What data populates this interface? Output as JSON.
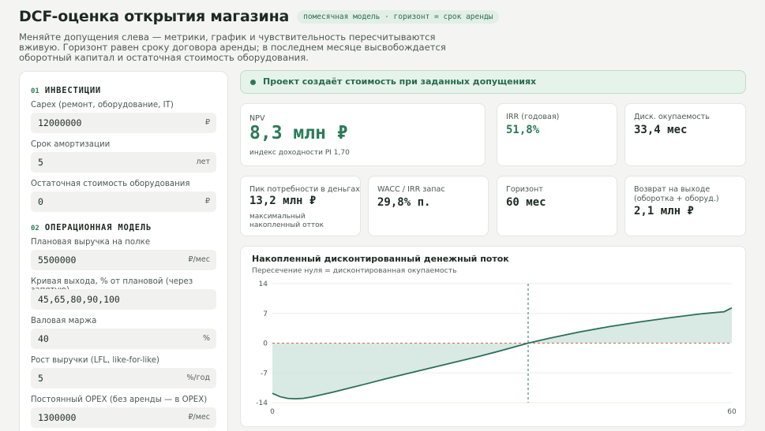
{
  "header": {
    "title": "DCF-оценка открытия магазина",
    "badge": "помесячная модель · горизонт = срок аренды",
    "subtitle": "Меняйте допущения слева — метрики, график и чувствительность пересчитываются вживую. Горизонт равен сроку договора аренды; в последнем месяце высвобождается оборотный капитал и остаточная стоимость оборудования."
  },
  "sections": {
    "investments": {
      "num": "01",
      "title": "ИНВЕСТИЦИИ"
    },
    "operations": {
      "num": "02",
      "title": "ОПЕРАЦИОННАЯ МОДЕЛЬ"
    }
  },
  "fields": [
    {
      "label": "Capex (ремонт, оборудование, IT)",
      "value": "12000000",
      "unit": "₽"
    },
    {
      "label": "Срок амортизации",
      "value": "5",
      "unit": "лет"
    },
    {
      "label": "Остаточная стоимость оборудования",
      "value": "0",
      "unit": "₽"
    },
    {
      "label": "Плановая выручка на полке",
      "value": "5500000",
      "unit": "₽/мес"
    },
    {
      "label": "Кривая выхода, % от плановой (через запятую)",
      "value": "45,65,80,90,100",
      "unit": ""
    },
    {
      "label": "Валовая маржа",
      "value": "40",
      "unit": "%"
    },
    {
      "label": "Рост выручки (LFL, like-for-like)",
      "value": "5",
      "unit": "%/год"
    },
    {
      "label": "Постоянный OPEX (без аренды — в OPEX)",
      "value": "1300000",
      "unit": "₽/мес"
    }
  ],
  "banner": {
    "text": "Проект создаёт стоимость при заданных допущениях",
    "color": "#2c7a58"
  },
  "metrics": {
    "npv": {
      "label": "NPV",
      "value": "8,3 млн ₽",
      "note": "индекс доходности PI 1,70"
    },
    "irr": {
      "label": "IRR (годовая)",
      "value": "51,8%"
    },
    "payback": {
      "label": "Диск. окупаемость",
      "value": "33,4 мес"
    },
    "peak": {
      "label": "Пик потребности в деньгах",
      "value": "13,2 млн ₽",
      "note": "максимальный накопленный отток"
    },
    "wacc": {
      "label": "WACC / IRR запас",
      "value": "29,8% п."
    },
    "horizon": {
      "label": "Горизонт",
      "value": "60 мес"
    },
    "exit": {
      "label": "Возврат на выходе (оборотка + оборуд.)",
      "value": "2,1 млн ₽"
    }
  },
  "chart_data": {
    "type": "area",
    "title": "Накопленный дисконтированный денежный поток",
    "subtitle": "Пересечение нуля = дисконтированная окупаемость",
    "xlim": [
      0,
      60
    ],
    "ylim": [
      -14,
      14
    ],
    "yticks": [
      "14",
      "7",
      "0",
      "-7",
      "-14"
    ],
    "xticks": [
      "0",
      "60"
    ],
    "payback_month": 33.4,
    "x": [
      0,
      1,
      2,
      3,
      4,
      5,
      6,
      8,
      10,
      12,
      15,
      18,
      21,
      24,
      27,
      30,
      33.4,
      36,
      40,
      44,
      48,
      52,
      56,
      59,
      60
    ],
    "y": [
      -11.8,
      -12.6,
      -13.0,
      -13.1,
      -13.0,
      -12.7,
      -12.3,
      -11.5,
      -10.6,
      -9.7,
      -8.3,
      -7.0,
      -5.7,
      -4.4,
      -3.1,
      -1.7,
      0.0,
      1.1,
      2.6,
      3.9,
      5.0,
      6.0,
      6.9,
      7.4,
      8.3
    ],
    "colors": {
      "line": "#2b6f5a",
      "fill": "#cfe3dc",
      "zero": "#c0392b",
      "marker": "#2b6f5a"
    }
  }
}
